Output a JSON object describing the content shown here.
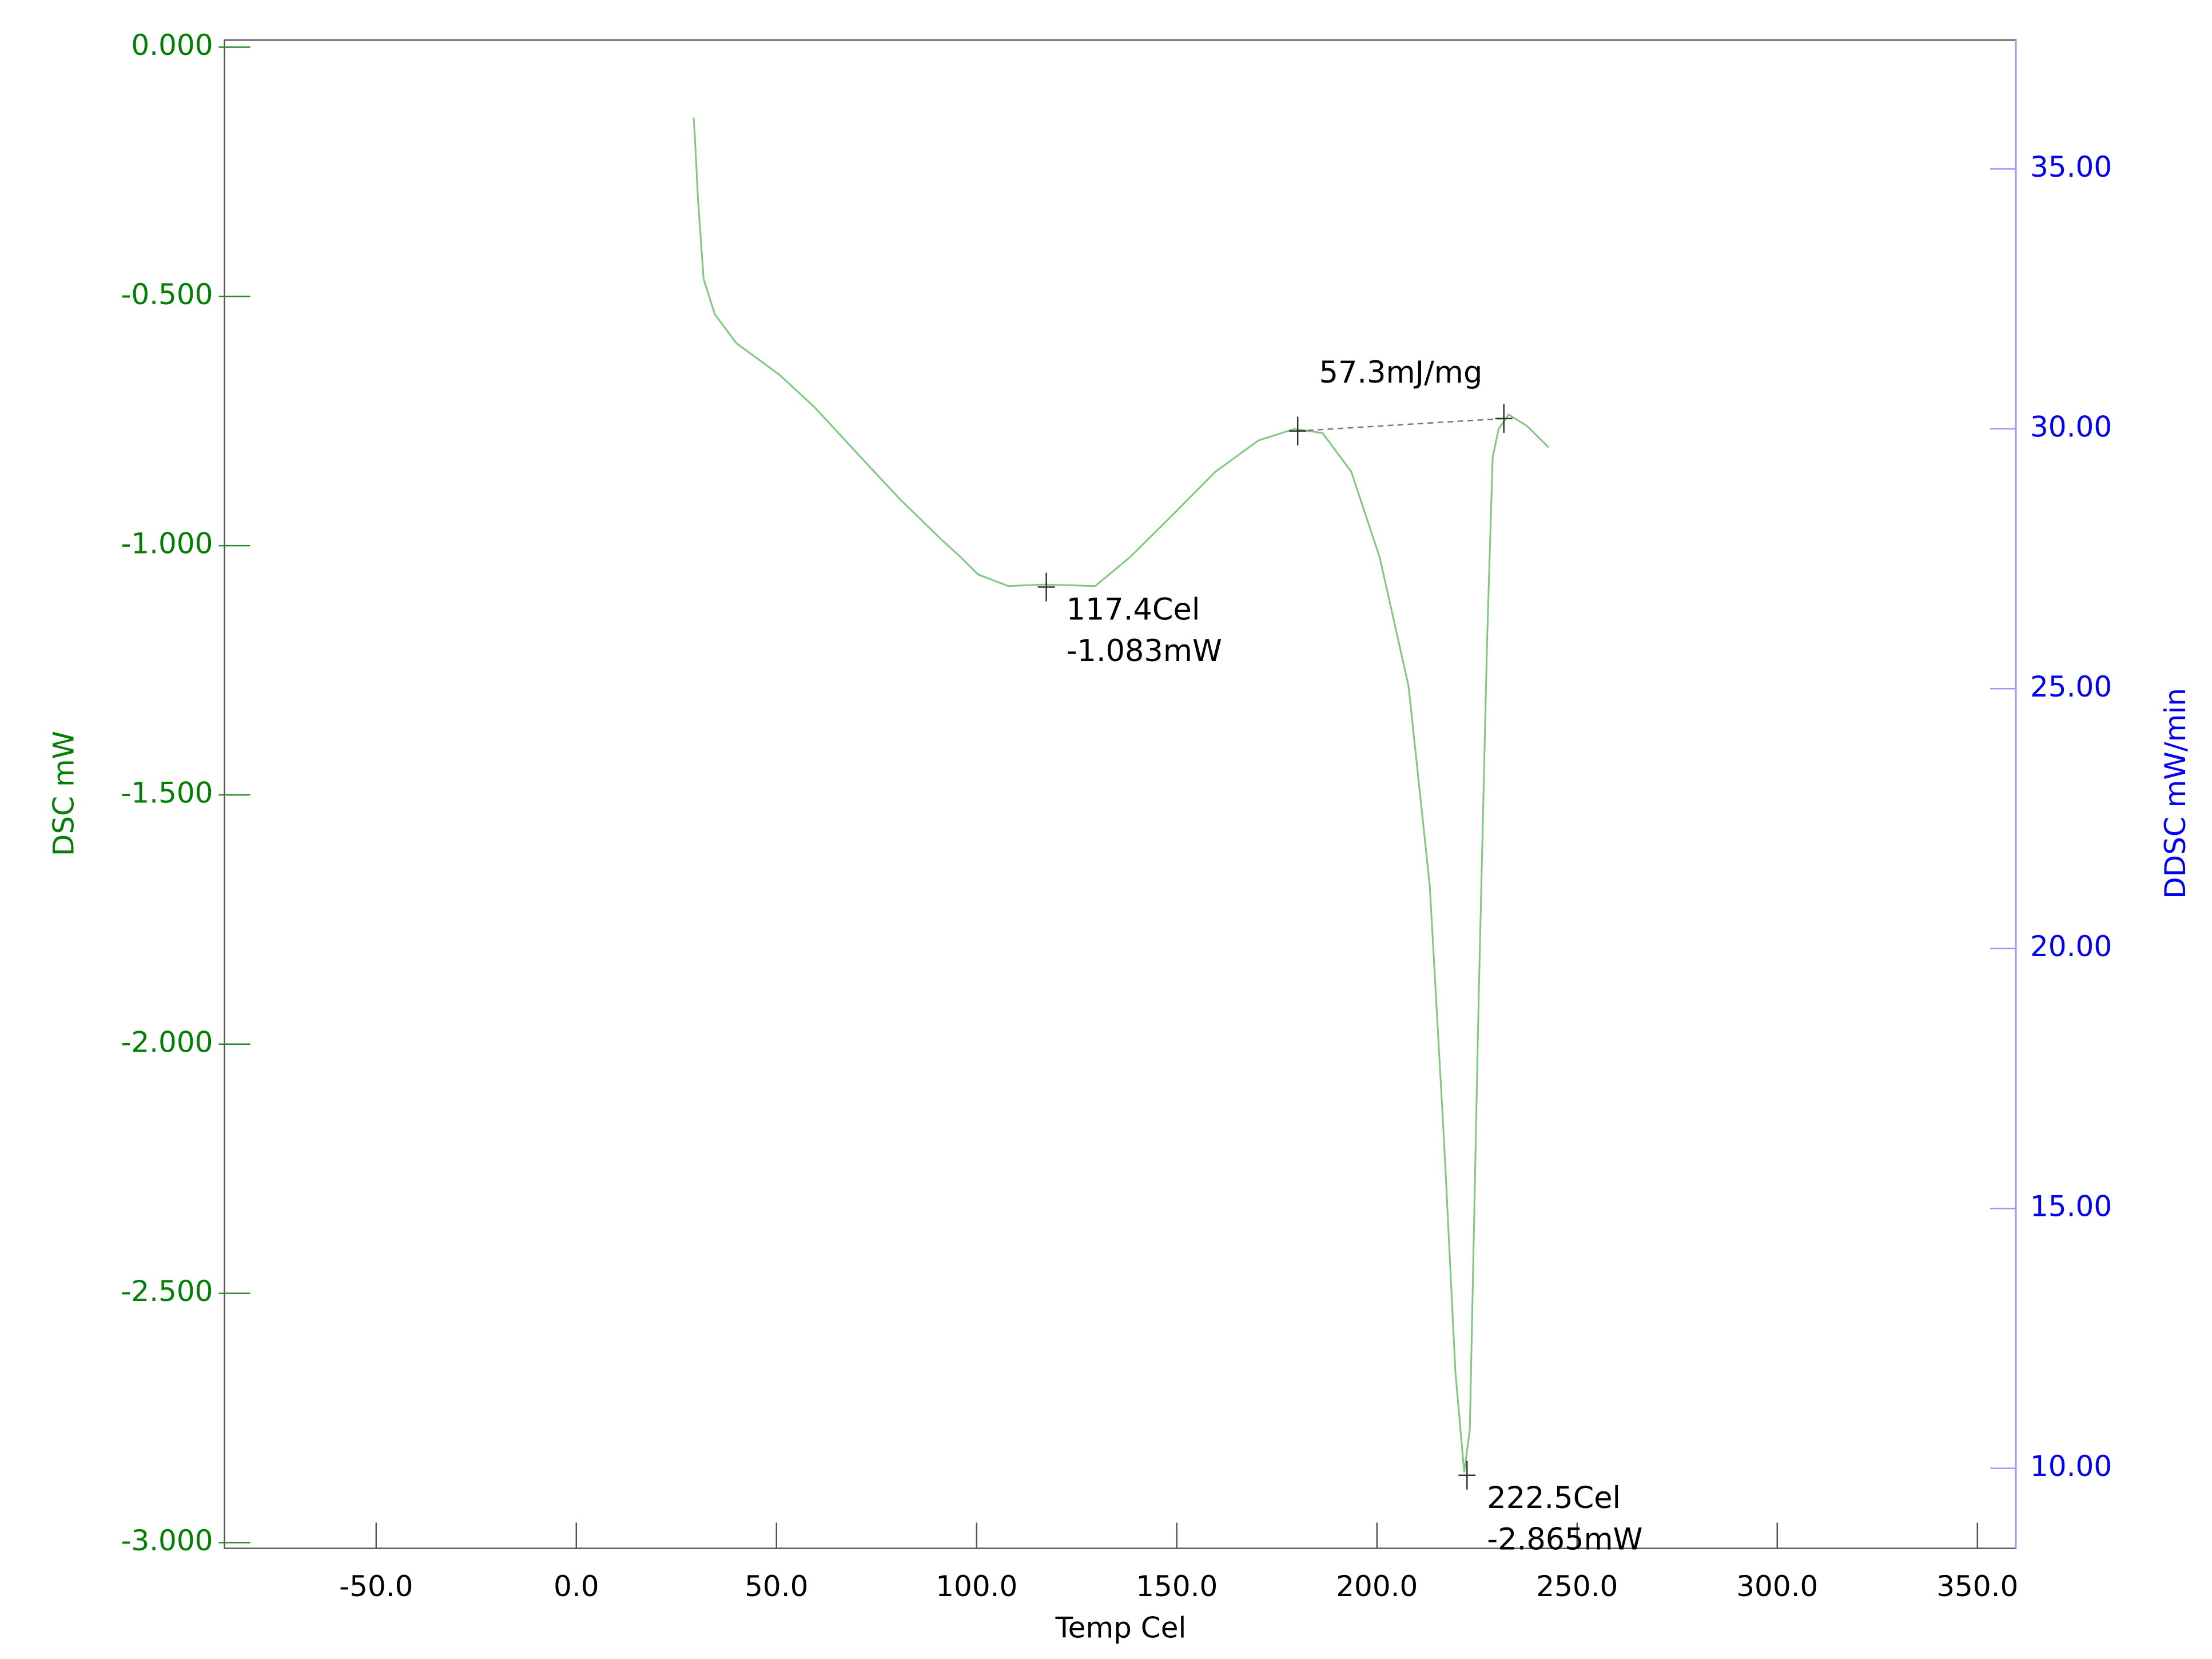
{
  "chart_data": {
    "type": "line",
    "xlabel": "Temp Cel",
    "ylabel": "DSC mW",
    "y2label": "DDSC mW/min",
    "xlim": [
      -87.9,
      359.6
    ],
    "ylim": [
      -3.0115,
      0.0143
    ],
    "y2lim": [
      8.46,
      37.48
    ],
    "xticks": [
      {
        "value": -50,
        "label": "-50.0"
      },
      {
        "value": 0,
        "label": "0.0"
      },
      {
        "value": 50,
        "label": "50.0"
      },
      {
        "value": 100,
        "label": "100.0"
      },
      {
        "value": 150,
        "label": "150.0"
      },
      {
        "value": 200,
        "label": "200.0"
      },
      {
        "value": 250,
        "label": "250.0"
      },
      {
        "value": 300,
        "label": "300.0"
      },
      {
        "value": 350,
        "label": "350.0"
      }
    ],
    "yticks": [
      {
        "value": 0,
        "label": "0.000"
      },
      {
        "value": -0.5,
        "label": "-0.500"
      },
      {
        "value": -1,
        "label": "-1.000"
      },
      {
        "value": -1.5,
        "label": "-1.500"
      },
      {
        "value": -2,
        "label": "-2.000"
      },
      {
        "value": -2.5,
        "label": "-2.500"
      },
      {
        "value": -3,
        "label": "-3.000"
      }
    ],
    "y2ticks": [
      {
        "value": 10,
        "label": "10.00"
      },
      {
        "value": 15,
        "label": "15.00"
      },
      {
        "value": 20,
        "label": "20.00"
      },
      {
        "value": 25,
        "label": "25.00"
      },
      {
        "value": 30,
        "label": "30.00"
      },
      {
        "value": 35,
        "label": "35.00"
      }
    ],
    "x": [
      29.3,
      29.6,
      30.4,
      31.8,
      34.6,
      40,
      50.7,
      59.6,
      70.4,
      81.1,
      91.1,
      96,
      100.4,
      107.9,
      117,
      129.6,
      138.2,
      149,
      159.6,
      170.4,
      179.3,
      186.4,
      193.6,
      200.7,
      207.9,
      213.2,
      216.8,
      219.6,
      221.8,
      223.2,
      225.4,
      227.5,
      228.9,
      230.4,
      232.9,
      237.5,
      242.9
    ],
    "series": [
      {
        "color": "#7dc97d",
        "values": [
          -0.141,
          -0.178,
          -0.307,
          -0.465,
          -0.536,
          -0.594,
          -0.657,
          -0.723,
          -0.817,
          -0.909,
          -0.987,
          -1.023,
          -1.058,
          -1.081,
          -1.078,
          -1.081,
          -1.024,
          -0.938,
          -0.852,
          -0.789,
          -0.766,
          -0.774,
          -0.852,
          -1.024,
          -1.282,
          -1.683,
          -2.2,
          -2.658,
          -2.859,
          -2.773,
          -1.913,
          -1.196,
          -0.823,
          -0.766,
          -0.737,
          -0.76,
          -0.803
        ]
      }
    ],
    "annotations": [
      {
        "x": 117.4,
        "y": -1.083,
        "text": [
          "117.4Cel",
          "-1.083mW"
        ]
      },
      {
        "x": 222.5,
        "y": -2.865,
        "text": [
          "222.5Cel",
          "-2.865mW"
        ]
      }
    ],
    "baseline": {
      "x": [
        180.2,
        231.7
      ],
      "y": [
        -0.77,
        -0.745
      ],
      "label": "57.3mJ/mg"
    }
  }
}
